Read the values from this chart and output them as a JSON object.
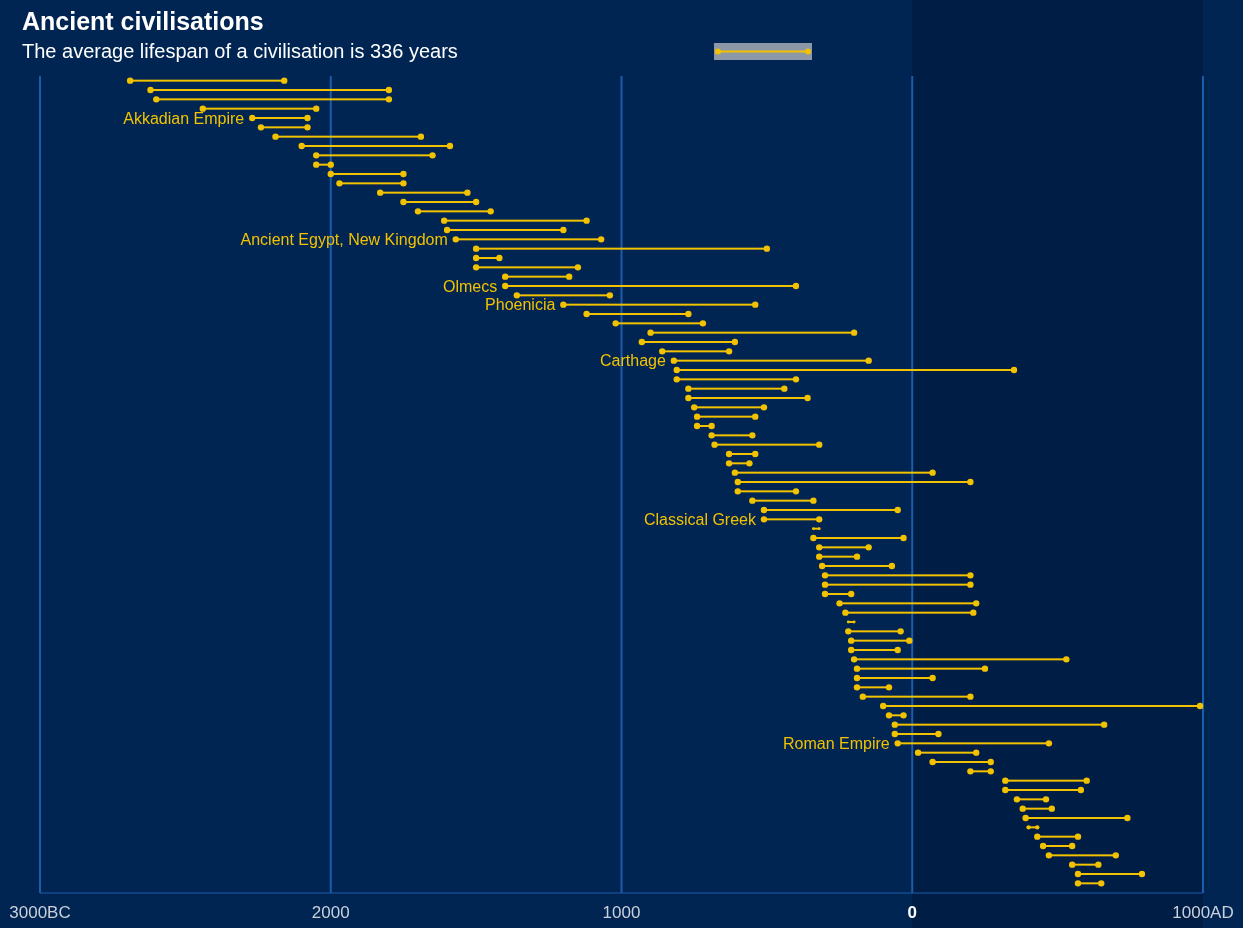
{
  "chart_data": {
    "type": "bar",
    "orientation": "horizontal",
    "title": "Ancient civilisations",
    "subtitle": "The average lifespan of a civilisation is 336 years",
    "categories": [
      null,
      null,
      null,
      null,
      "Akkadian Empire",
      null,
      null,
      null,
      null,
      null,
      null,
      null,
      null,
      null,
      null,
      null,
      null,
      "Ancient Egypt, New Kingdom",
      null,
      null,
      null,
      null,
      "Olmecs",
      null,
      "Phoenicia",
      null,
      null,
      null,
      null,
      null,
      "Carthage",
      null,
      null,
      null,
      null,
      null,
      null,
      null,
      null,
      null,
      null,
      null,
      null,
      null,
      null,
      null,
      null,
      "Classical Greek",
      null,
      null,
      null,
      null,
      null,
      null,
      null,
      null,
      null,
      null,
      null,
      null,
      null,
      null,
      null,
      null,
      null,
      null,
      null,
      null,
      null,
      null,
      null,
      "Roman Empire",
      null,
      null,
      null,
      null,
      null,
      null,
      null,
      null,
      null,
      null,
      null,
      null,
      null,
      null,
      null
    ],
    "base": [
      -2690,
      -2620,
      -2600,
      -2440,
      -2270,
      -2240,
      -2190,
      -2100,
      -2050,
      -2050,
      -2000,
      -1970,
      -1830,
      -1750,
      -1700,
      -1610,
      -1600,
      -1570,
      -1500,
      -1500,
      -1500,
      -1400,
      -1400,
      -1360,
      -1200,
      -1120,
      -1020,
      -900,
      -930,
      -860,
      -820,
      -810,
      -810,
      -770,
      -770,
      -750,
      -740,
      -740,
      -690,
      -680,
      -630,
      -630,
      -610,
      -600,
      -600,
      -550,
      -510,
      -510,
      -340,
      -340,
      -320,
      -320,
      -310,
      -300,
      -300,
      -300,
      -250,
      -230,
      -220,
      -220,
      -210,
      -210,
      -200,
      -190,
      -190,
      -190,
      -170,
      -100,
      -80,
      -60,
      -60,
      -50,
      20,
      70,
      200,
      320,
      320,
      360,
      380,
      390,
      400,
      430,
      450,
      470,
      550,
      570,
      570
    ],
    "values": [
      530,
      820,
      800,
      390,
      190,
      160,
      500,
      510,
      400,
      50,
      250,
      220,
      300,
      250,
      250,
      490,
      400,
      500,
      1000,
      80,
      350,
      220,
      1000,
      320,
      660,
      350,
      300,
      700,
      320,
      230,
      670,
      1160,
      410,
      330,
      410,
      240,
      200,
      50,
      140,
      360,
      90,
      70,
      680,
      800,
      200,
      210,
      460,
      190,
      20,
      310,
      170,
      130,
      240,
      500,
      500,
      90,
      470,
      440,
      20,
      180,
      200,
      160,
      730,
      440,
      260,
      110,
      370,
      1090,
      50,
      720,
      150,
      520,
      200,
      200,
      70,
      280,
      260,
      100,
      100,
      350,
      30,
      140,
      100,
      230,
      90,
      220,
      80
    ],
    "color": "#f2c200",
    "xlim": [
      -3000,
      1000
    ],
    "xticks": [
      {
        "value": -3000,
        "label": "3000BC"
      },
      {
        "value": -2000,
        "label": "2000"
      },
      {
        "value": -1000,
        "label": "1000"
      },
      0,
      {
        "value": 1000,
        "label": "1000AD"
      }
    ],
    "grid": "x",
    "bands": [
      {
        "axis": "x",
        "from": 0,
        "to": 1000,
        "color": "#001d45"
      }
    ]
  }
}
